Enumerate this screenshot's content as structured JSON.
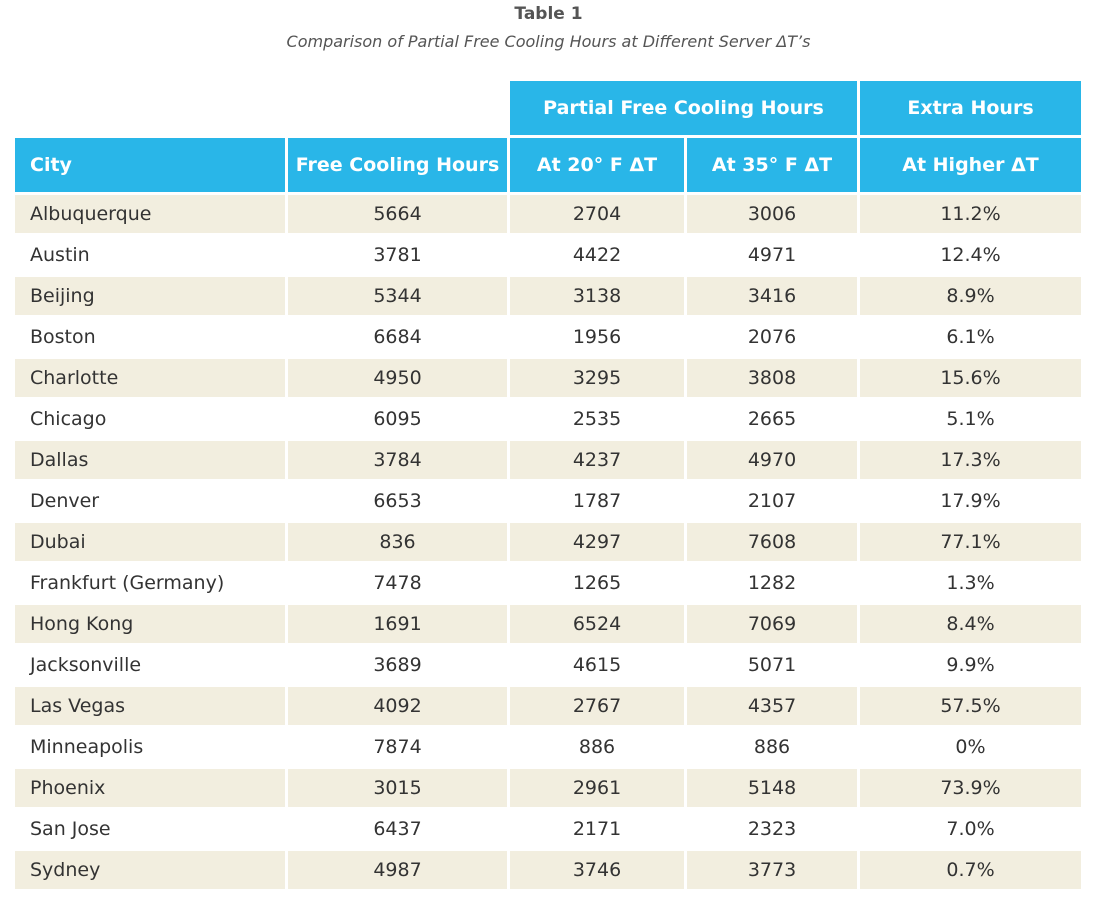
{
  "caption": {
    "label": "Table 1",
    "title": "Comparison of Partial Free Cooling Hours at Different Server ΔT’s"
  },
  "header": {
    "group_partial": "Partial Free Cooling Hours",
    "group_extra": "Extra Hours",
    "columns": [
      "City",
      "Free Cooling Hours",
      "At 20° F ΔT",
      "At 35° F ΔT",
      "At Higher ΔT"
    ]
  },
  "rows": [
    [
      "Albuquerque",
      "5664",
      "2704",
      "3006",
      "11.2%"
    ],
    [
      "Austin",
      "3781",
      "4422",
      "4971",
      "12.4%"
    ],
    [
      "Beijing",
      "5344",
      "3138",
      "3416",
      "8.9%"
    ],
    [
      "Boston",
      "6684",
      "1956",
      "2076",
      "6.1%"
    ],
    [
      "Charlotte",
      "4950",
      "3295",
      "3808",
      "15.6%"
    ],
    [
      "Chicago",
      "6095",
      "2535",
      "2665",
      "5.1%"
    ],
    [
      "Dallas",
      "3784",
      "4237",
      "4970",
      "17.3%"
    ],
    [
      "Denver",
      "6653",
      "1787",
      "2107",
      "17.9%"
    ],
    [
      "Dubai",
      "836",
      "4297",
      "7608",
      "77.1%"
    ],
    [
      "Frankfurt (Germany)",
      "7478",
      "1265",
      "1282",
      "1.3%"
    ],
    [
      "Hong Kong",
      "1691",
      "6524",
      "7069",
      "8.4%"
    ],
    [
      "Jacksonville",
      "3689",
      "4615",
      "5071",
      "9.9%"
    ],
    [
      "Las Vegas",
      "4092",
      "2767",
      "4357",
      "57.5%"
    ],
    [
      "Minneapolis",
      "7874",
      "886",
      "886",
      "0%"
    ],
    [
      "Phoenix",
      "3015",
      "2961",
      "5148",
      "73.9%"
    ],
    [
      "San Jose",
      "6437",
      "2171",
      "2323",
      "7.0%"
    ],
    [
      "Sydney",
      "4987",
      "3746",
      "3773",
      "0.7%"
    ]
  ],
  "colors": {
    "header_bg": "#29b6e8",
    "stripe_bg": "#f2eedf"
  }
}
